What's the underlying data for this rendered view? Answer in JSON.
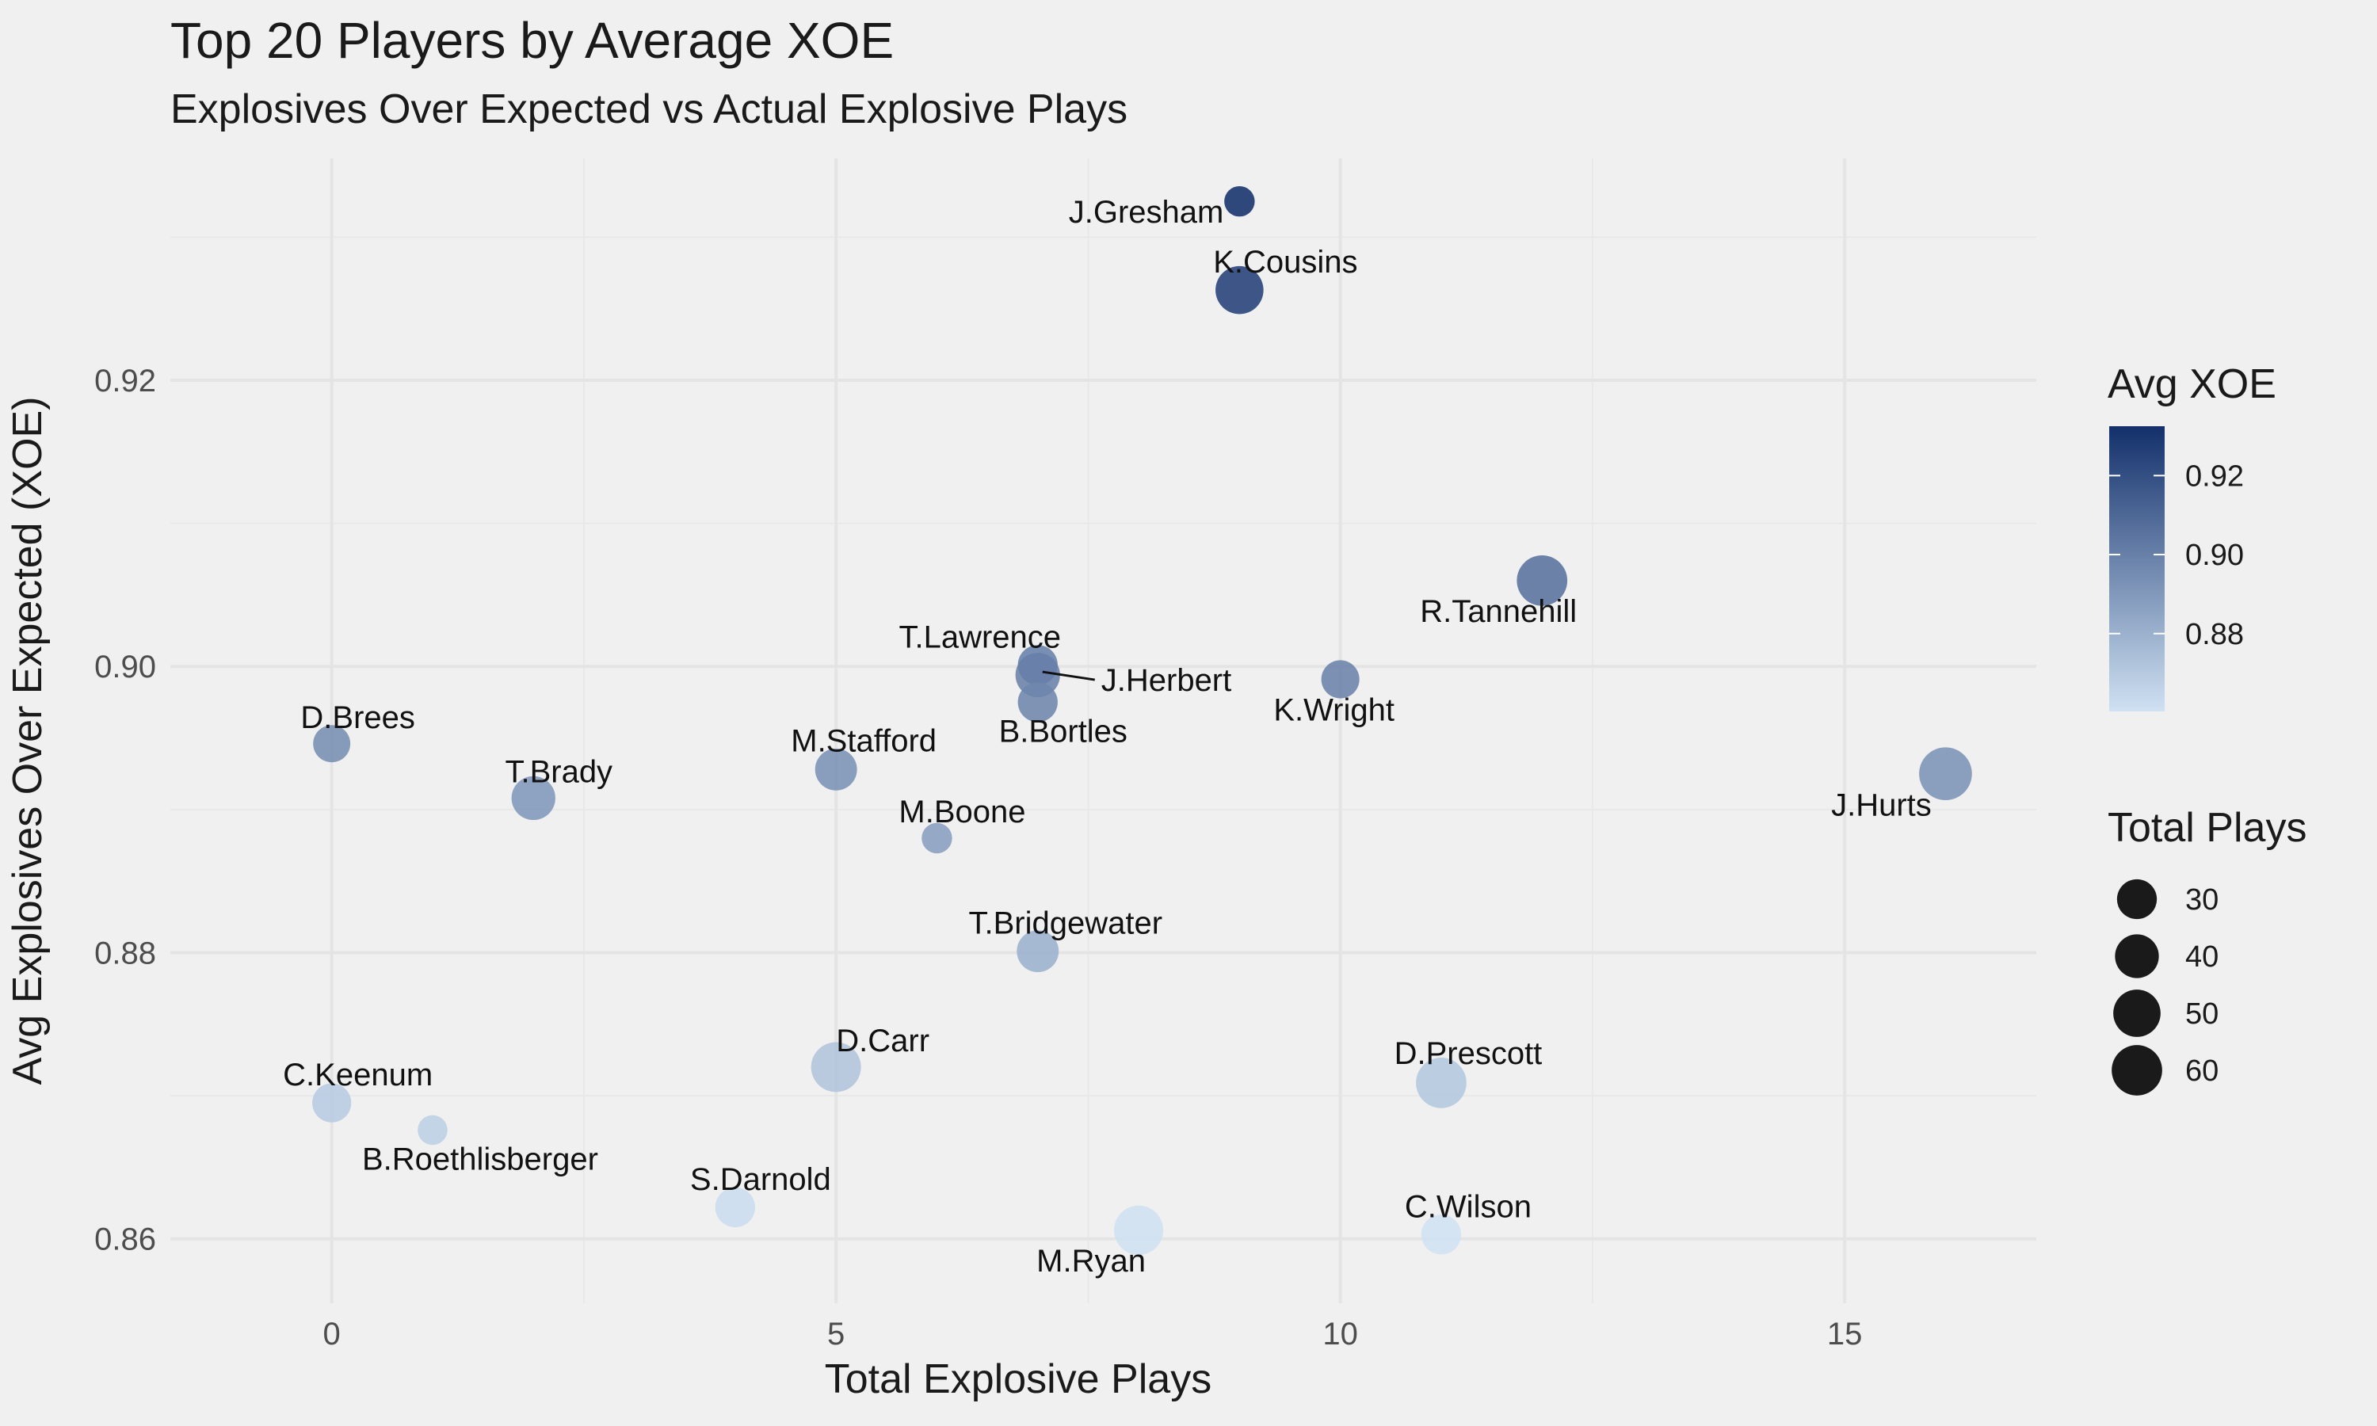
{
  "chart_data": {
    "type": "scatter",
    "title": "Top 20 Players by Average XOE",
    "subtitle": "Explosives Over Expected vs Actual Explosive Plays",
    "xlabel": "Total Explosive Plays",
    "ylabel": "Avg Explosives Over Expected (XOE)",
    "xlim": [
      -1.6,
      16.9
    ],
    "ylim": [
      0.8555,
      0.9355
    ],
    "x_ticks": [
      0,
      5,
      10,
      15
    ],
    "y_ticks": [
      0.86,
      0.88,
      0.9,
      0.92
    ],
    "x_tick_labels": [
      "0",
      "5",
      "10",
      "15"
    ],
    "y_tick_labels": [
      "0.86",
      "0.88",
      "0.90",
      "0.92"
    ],
    "grid": true,
    "legend_position": "right",
    "color_legend": {
      "title": "Avg XOE",
      "ticks": [
        0.88,
        0.9,
        0.92
      ],
      "tick_labels": [
        "0.88",
        "0.90",
        "0.92"
      ],
      "range": [
        0.8603,
        0.9325
      ],
      "low_color": "#cfe1f2",
      "high_color": "#13306b"
    },
    "size_legend": {
      "title": "Total Plays",
      "values": [
        30,
        40,
        50,
        60
      ],
      "labels": [
        "30",
        "40",
        "50",
        "60"
      ],
      "point_color": "#1a1a1a"
    },
    "points": [
      {
        "label": "J.Gresham",
        "x": 9,
        "y": 0.9325,
        "plays": 12
      },
      {
        "label": "K.Cousins",
        "x": 9,
        "y": 0.9263,
        "plays": 52
      },
      {
        "label": "R.Tannehill",
        "x": 12,
        "y": 0.906,
        "plays": 60
      },
      {
        "label": "T.Lawrence",
        "x": 7,
        "y": 0.9001,
        "plays": 30
      },
      {
        "label": "J.Herbert",
        "x": 7,
        "y": 0.8994,
        "plays": 42
      },
      {
        "label": "B.Bortles",
        "x": 7,
        "y": 0.8975,
        "plays": 30
      },
      {
        "label": "K.Wright",
        "x": 10,
        "y": 0.8991,
        "plays": 26
      },
      {
        "label": "D.Brees",
        "x": 0,
        "y": 0.8946,
        "plays": 24
      },
      {
        "label": "T.Brady",
        "x": 2,
        "y": 0.8908,
        "plays": 40
      },
      {
        "label": "M.Stafford",
        "x": 5,
        "y": 0.8928,
        "plays": 35
      },
      {
        "label": "M.Boone",
        "x": 6,
        "y": 0.888,
        "plays": 12
      },
      {
        "label": "J.Hurts",
        "x": 16,
        "y": 0.8925,
        "plays": 68
      },
      {
        "label": "T.Bridgewater",
        "x": 7,
        "y": 0.8801,
        "plays": 35
      },
      {
        "label": "D.Carr",
        "x": 5,
        "y": 0.872,
        "plays": 58
      },
      {
        "label": "D.Prescott",
        "x": 11,
        "y": 0.8709,
        "plays": 60
      },
      {
        "label": "C.Keenum",
        "x": 0,
        "y": 0.8695,
        "plays": 28
      },
      {
        "label": "B.Roethlisberger",
        "x": 1,
        "y": 0.8676,
        "plays": 11
      },
      {
        "label": "S.Darnold",
        "x": 4,
        "y": 0.8622,
        "plays": 30
      },
      {
        "label": "C.Wilson",
        "x": 11,
        "y": 0.8603,
        "plays": 30
      },
      {
        "label": "M.Ryan",
        "x": 8,
        "y": 0.8606,
        "plays": 56
      }
    ]
  }
}
